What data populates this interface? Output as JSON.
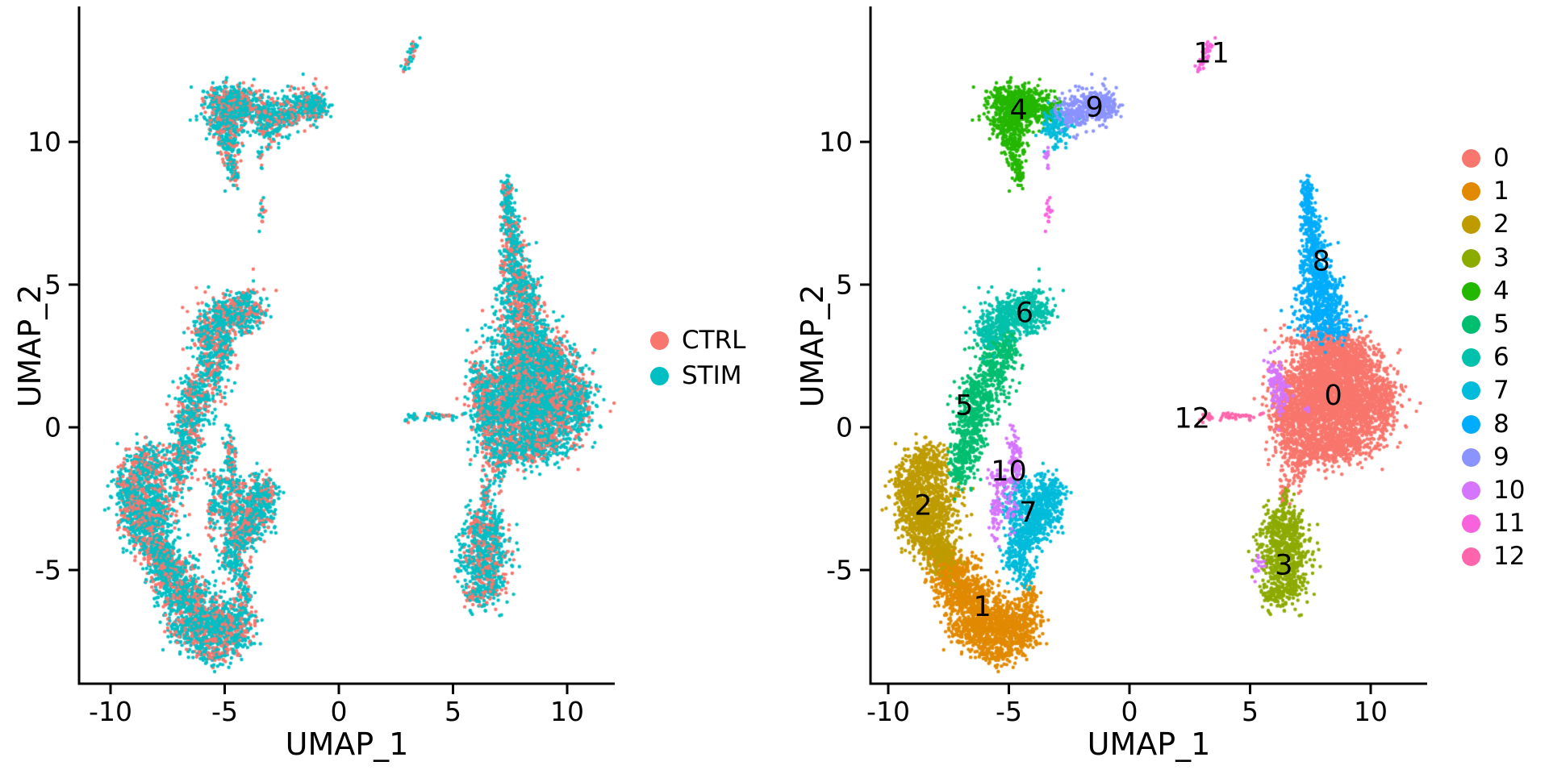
{
  "figure": {
    "background": "#ffffff"
  },
  "panels": [
    {
      "id": "condition-umap",
      "xlabel": "UMAP_1",
      "ylabel": "UMAP_2",
      "legend": {
        "items": [
          {
            "label": "CTRL",
            "color": "#F8766D"
          },
          {
            "label": "STIM",
            "color": "#00BFC4"
          }
        ]
      }
    },
    {
      "id": "cluster-umap",
      "xlabel": "UMAP_1",
      "ylabel": "UMAP_2",
      "legend": {
        "items": [
          {
            "label": "0",
            "color": "#F8766D"
          },
          {
            "label": "1",
            "color": "#E18A00"
          },
          {
            "label": "2",
            "color": "#BE9C00"
          },
          {
            "label": "3",
            "color": "#8CAB00"
          },
          {
            "label": "4",
            "color": "#24B700"
          },
          {
            "label": "5",
            "color": "#00BE70"
          },
          {
            "label": "6",
            "color": "#00C1AB"
          },
          {
            "label": "7",
            "color": "#00BBDA"
          },
          {
            "label": "8",
            "color": "#00ACFC"
          },
          {
            "label": "9",
            "color": "#8B93FF"
          },
          {
            "label": "10",
            "color": "#D575FE"
          },
          {
            "label": "11",
            "color": "#F962DD"
          },
          {
            "label": "12",
            "color": "#FF65AC"
          }
        ]
      }
    }
  ],
  "chart_data": {
    "type": "scatter",
    "embedding": "UMAP",
    "xlabel": "UMAP_1",
    "ylabel": "UMAP_2",
    "x_ticks": [
      -10,
      -5,
      0,
      5,
      10
    ],
    "y_ticks": [
      10,
      5,
      0,
      -5
    ],
    "xlim": [
      -11.4,
      12.1
    ],
    "ylim": [
      -9.0,
      14.5
    ],
    "grid": false,
    "point_radius_px": 2.2,
    "seed": 42,
    "conditions": {
      "names": [
        "CTRL",
        "STIM"
      ],
      "colors": [
        "#F8766D",
        "#00BFC4"
      ],
      "ctrl_fraction": 0.34
    },
    "clusters": [
      {
        "label": "0",
        "color": "#F8766D",
        "label_pos": [
          8.45,
          1.1
        ],
        "components": [
          [
            8.5,
            1.3,
            1.0,
            0.85,
            0,
            1500
          ],
          [
            7.3,
            0.6,
            0.7,
            0.8,
            0,
            700
          ],
          [
            9.5,
            0.5,
            0.75,
            0.6,
            0,
            500
          ],
          [
            8.0,
            2.7,
            0.7,
            0.45,
            0,
            350
          ],
          [
            9.3,
            2.2,
            0.6,
            0.5,
            0,
            300
          ],
          [
            7.6,
            -0.7,
            0.8,
            0.35,
            0,
            280
          ],
          [
            8.8,
            -0.6,
            0.7,
            0.3,
            0,
            220
          ],
          [
            10.6,
            0.9,
            0.3,
            0.45,
            0,
            120
          ],
          [
            6.35,
            0.5,
            0.3,
            0.55,
            0,
            130
          ],
          [
            7.0,
            -1.55,
            0.18,
            0.3,
            0,
            40
          ],
          [
            6.4,
            -1.9,
            0.12,
            0.45,
            0,
            35
          ]
        ]
      },
      {
        "label": "1",
        "color": "#E18A00",
        "label_pos": [
          -6.1,
          -6.3
        ],
        "components": [
          [
            -7.3,
            -5.2,
            0.45,
            0.45,
            20,
            260
          ],
          [
            -6.7,
            -5.9,
            0.6,
            0.55,
            -10,
            380
          ],
          [
            -5.8,
            -6.7,
            0.65,
            0.5,
            -15,
            420
          ],
          [
            -4.9,
            -7.2,
            0.55,
            0.38,
            -15,
            300
          ],
          [
            -6.5,
            -7.3,
            0.5,
            0.3,
            -10,
            180
          ],
          [
            -4.3,
            -6.7,
            0.28,
            0.45,
            0,
            130
          ],
          [
            -5.6,
            -7.95,
            0.4,
            0.18,
            -10,
            100
          ],
          [
            -7.8,
            -4.6,
            0.3,
            0.3,
            0,
            90
          ],
          [
            -4.15,
            -5.9,
            0.15,
            0.25,
            0,
            40
          ]
        ]
      },
      {
        "label": "2",
        "color": "#BE9C00",
        "label_pos": [
          -8.55,
          -2.75
        ],
        "components": [
          [
            -8.6,
            -1.9,
            0.5,
            0.55,
            30,
            300
          ],
          [
            -8.95,
            -2.8,
            0.4,
            0.55,
            10,
            280
          ],
          [
            -8.4,
            -3.5,
            0.5,
            0.5,
            -15,
            300
          ],
          [
            -7.85,
            -4.3,
            0.4,
            0.38,
            -30,
            200
          ],
          [
            -8.25,
            -1.1,
            0.35,
            0.33,
            30,
            130
          ],
          [
            -7.7,
            -2.8,
            0.45,
            0.5,
            0,
            150
          ],
          [
            -9.35,
            -2.0,
            0.2,
            0.3,
            0,
            50
          ]
        ]
      },
      {
        "label": "3",
        "color": "#8CAB00",
        "label_pos": [
          6.4,
          -4.85
        ],
        "components": [
          [
            6.35,
            -4.3,
            0.5,
            0.55,
            0,
            360
          ],
          [
            6.55,
            -5.3,
            0.42,
            0.45,
            0,
            240
          ],
          [
            6.2,
            -3.4,
            0.35,
            0.3,
            0,
            120
          ],
          [
            6.1,
            -5.9,
            0.3,
            0.25,
            0,
            80
          ],
          [
            6.9,
            -3.3,
            0.15,
            0.25,
            0,
            40
          ],
          [
            6.5,
            -2.6,
            0.1,
            0.3,
            0,
            20
          ]
        ]
      },
      {
        "label": "4",
        "color": "#24B700",
        "label_pos": [
          -4.6,
          11.1
        ],
        "components": [
          [
            -4.9,
            11.55,
            0.5,
            0.28,
            0,
            220
          ],
          [
            -4.0,
            11.3,
            0.45,
            0.25,
            -5,
            170
          ],
          [
            -4.8,
            11.0,
            0.55,
            0.3,
            0,
            220
          ],
          [
            -5.0,
            10.5,
            0.35,
            0.3,
            0,
            140
          ],
          [
            -4.9,
            9.95,
            0.22,
            0.28,
            0,
            80
          ],
          [
            -4.7,
            9.3,
            0.14,
            0.4,
            0,
            55
          ],
          [
            -4.55,
            8.75,
            0.1,
            0.2,
            0,
            25
          ],
          [
            -3.3,
            11.05,
            0.25,
            0.2,
            0,
            50
          ]
        ]
      },
      {
        "label": "5",
        "color": "#00BE70",
        "label_pos": [
          -6.85,
          0.75
        ],
        "components": [
          [
            -5.25,
            2.7,
            0.3,
            0.4,
            45,
            140
          ],
          [
            -5.7,
            2.0,
            0.33,
            0.45,
            40,
            170
          ],
          [
            -6.2,
            1.1,
            0.35,
            0.5,
            30,
            190
          ],
          [
            -6.55,
            0.2,
            0.3,
            0.5,
            15,
            190
          ],
          [
            -6.8,
            -0.7,
            0.3,
            0.45,
            10,
            160
          ],
          [
            -7.05,
            -1.5,
            0.25,
            0.35,
            0,
            80
          ],
          [
            -4.95,
            3.05,
            0.18,
            0.2,
            0,
            40
          ]
        ]
      },
      {
        "label": "6",
        "color": "#00C1AB",
        "label_pos": [
          -4.35,
          4.0
        ],
        "components": [
          [
            -4.6,
            4.05,
            0.7,
            0.38,
            10,
            300
          ],
          [
            -5.5,
            3.6,
            0.45,
            0.35,
            25,
            150
          ],
          [
            -3.9,
            3.9,
            0.3,
            0.3,
            0,
            90
          ],
          [
            -5.9,
            3.15,
            0.2,
            0.2,
            0,
            40
          ],
          [
            -4.15,
            4.5,
            0.2,
            0.14,
            0,
            35
          ]
        ]
      },
      {
        "label": "7",
        "color": "#00BBDA",
        "label_pos": [
          -4.2,
          -3.0
        ],
        "components": [
          [
            -2.95,
            10.55,
            0.38,
            0.33,
            20,
            130
          ],
          [
            -3.4,
            -2.3,
            0.4,
            0.35,
            -40,
            200
          ],
          [
            -3.9,
            -3.1,
            0.45,
            0.45,
            -35,
            280
          ],
          [
            -4.4,
            -3.9,
            0.38,
            0.38,
            -25,
            200
          ],
          [
            -4.7,
            -4.6,
            0.3,
            0.25,
            -10,
            90
          ],
          [
            -4.9,
            -2.9,
            0.25,
            0.35,
            0,
            60
          ],
          [
            -4.6,
            -2.0,
            0.22,
            0.22,
            0,
            50
          ],
          [
            -4.3,
            -5.3,
            0.25,
            0.25,
            0,
            45
          ]
        ]
      },
      {
        "label": "8",
        "color": "#00ACFC",
        "label_pos": [
          7.95,
          5.8
        ],
        "components": [
          [
            7.35,
            8.2,
            0.12,
            0.35,
            0,
            80
          ],
          [
            7.45,
            7.4,
            0.16,
            0.4,
            0,
            100
          ],
          [
            7.6,
            6.5,
            0.22,
            0.45,
            0,
            130
          ],
          [
            7.75,
            5.5,
            0.35,
            0.45,
            0,
            170
          ],
          [
            7.95,
            4.6,
            0.5,
            0.4,
            0,
            220
          ],
          [
            8.1,
            3.8,
            0.65,
            0.35,
            0,
            200
          ],
          [
            8.35,
            3.4,
            0.45,
            0.18,
            0,
            60
          ]
        ]
      },
      {
        "label": "9",
        "color": "#8B93FF",
        "label_pos": [
          -1.45,
          11.2
        ],
        "components": [
          [
            -1.7,
            11.2,
            0.55,
            0.33,
            5,
            250
          ],
          [
            -1.05,
            11.35,
            0.3,
            0.25,
            0,
            90
          ],
          [
            -2.35,
            10.95,
            0.3,
            0.28,
            0,
            80
          ]
        ]
      },
      {
        "label": "10",
        "color": "#D575FE",
        "label_pos": [
          -5.0,
          -1.55
        ],
        "components": [
          [
            6.1,
            1.6,
            0.2,
            0.42,
            15,
            100
          ],
          [
            6.25,
            0.85,
            0.1,
            0.3,
            0,
            18
          ],
          [
            -4.75,
            -1.1,
            0.13,
            0.55,
            5,
            85
          ],
          [
            -5.55,
            -3.0,
            0.12,
            0.45,
            0,
            55
          ],
          [
            -5.3,
            -1.9,
            0.3,
            0.25,
            0,
            45
          ],
          [
            -4.9,
            -2.9,
            0.2,
            0.3,
            0,
            30
          ],
          [
            5.35,
            -4.85,
            0.12,
            0.22,
            -30,
            16
          ],
          [
            -3.42,
            9.55,
            0.08,
            0.28,
            0,
            12
          ],
          [
            7.35,
            0.6,
            0.05,
            0.05,
            0,
            4
          ]
        ]
      },
      {
        "label": "11",
        "color": "#F962DD",
        "label_pos": [
          3.4,
          13.1
        ],
        "components": [
          [
            3.2,
            13.1,
            0.1,
            0.33,
            -25,
            40
          ],
          [
            -3.4,
            7.6,
            0.09,
            0.28,
            10,
            16
          ]
        ]
      },
      {
        "label": "12",
        "color": "#FF65AC",
        "label_pos": [
          2.6,
          0.3
        ],
        "components": [
          [
            3.3,
            0.32,
            0.22,
            0.06,
            0,
            16
          ],
          [
            4.1,
            0.42,
            0.28,
            0.06,
            0,
            18
          ],
          [
            4.85,
            0.4,
            0.18,
            0.06,
            0,
            12
          ],
          [
            5.5,
            0.45,
            0.05,
            0.05,
            0,
            4
          ],
          [
            2.95,
            0.2,
            0.06,
            0.06,
            0,
            4
          ]
        ]
      }
    ]
  }
}
